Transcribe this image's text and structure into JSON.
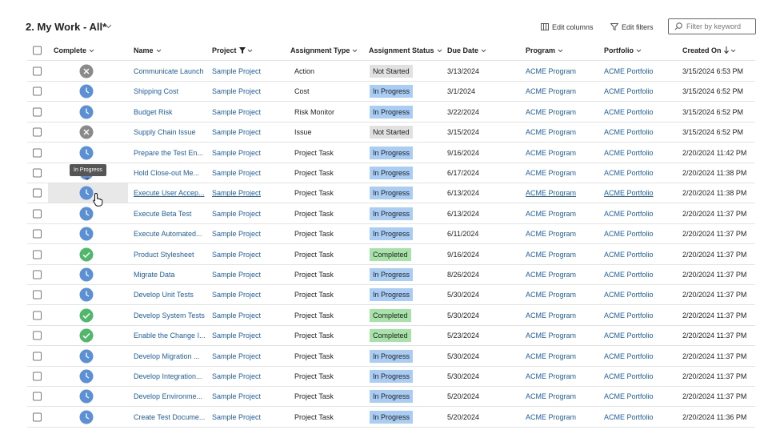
{
  "header": {
    "title": "2. My Work - All*",
    "edit_columns": "Edit columns",
    "edit_filters": "Edit filters",
    "search_placeholder": "Filter by keyword"
  },
  "table": {
    "columns": [
      "Complete",
      "Name",
      "Project",
      "Assignment Type",
      "Assignment Status",
      "Due Date",
      "Program",
      "Portfolio",
      "Created On"
    ],
    "rows": [
      [
        "Communicate Launch",
        "Sample Project",
        "Action",
        "Not Started",
        "3/13/2024",
        "ACME Program",
        "ACME Portfolio",
        "3/15/2024 6:53 PM"
      ],
      [
        "Shipping Cost",
        "Sample Project",
        "Cost",
        "In Progress",
        "3/1/2024",
        "ACME Program",
        "ACME Portfolio",
        "3/15/2024 6:52 PM"
      ],
      [
        "Budget Risk",
        "Sample Project",
        "Risk Monitor",
        "In Progress",
        "3/22/2024",
        "ACME Program",
        "ACME Portfolio",
        "3/15/2024 6:52 PM"
      ],
      [
        "Supply Chain Issue",
        "Sample Project",
        "Issue",
        "Not Started",
        "3/15/2024",
        "ACME Program",
        "ACME Portfolio",
        "3/15/2024 6:52 PM"
      ],
      [
        "Prepare the Test En...",
        "Sample Project",
        "Project Task",
        "In Progress",
        "9/16/2024",
        "ACME Program",
        "ACME Portfolio",
        "2/20/2024 11:42 PM"
      ],
      [
        "Hold Close-out Me...",
        "Sample Project",
        "Project Task",
        "In Progress",
        "6/17/2024",
        "ACME Program",
        "ACME Portfolio",
        "2/20/2024 11:38 PM"
      ],
      [
        "Execute User Accep...",
        "Sample Project",
        "Project Task",
        "In Progress",
        "6/13/2024",
        "ACME Program",
        "ACME Portfolio",
        "2/20/2024 11:38 PM"
      ],
      [
        "Execute Beta Test",
        "Sample Project",
        "Project Task",
        "In Progress",
        "6/13/2024",
        "ACME Program",
        "ACME Portfolio",
        "2/20/2024 11:37 PM"
      ],
      [
        "Execute Automated...",
        "Sample Project",
        "Project Task",
        "In Progress",
        "6/11/2024",
        "ACME Program",
        "ACME Portfolio",
        "2/20/2024 11:37 PM"
      ],
      [
        "Product Stylesheet",
        "Sample Project",
        "Project Task",
        "Completed",
        "9/16/2024",
        "ACME Program",
        "ACME Portfolio",
        "2/20/2024 11:37 PM"
      ],
      [
        "Migrate Data",
        "Sample Project",
        "Project Task",
        "In Progress",
        "8/26/2024",
        "ACME Program",
        "ACME Portfolio",
        "2/20/2024 11:37 PM"
      ],
      [
        "Develop Unit Tests",
        "Sample Project",
        "Project Task",
        "In Progress",
        "5/30/2024",
        "ACME Program",
        "ACME Portfolio",
        "2/20/2024 11:37 PM"
      ],
      [
        "Develop System Tests",
        "Sample Project",
        "Project Task",
        "Completed",
        "5/30/2024",
        "ACME Program",
        "ACME Portfolio",
        "2/20/2024 11:37 PM"
      ],
      [
        "Enable the Change I...",
        "Sample Project",
        "Project Task",
        "Completed",
        "5/23/2024",
        "ACME Program",
        "ACME Portfolio",
        "2/20/2024 11:37 PM"
      ],
      [
        "Develop Migration ...",
        "Sample Project",
        "Project Task",
        "In Progress",
        "5/30/2024",
        "ACME Program",
        "ACME Portfolio",
        "2/20/2024 11:37 PM"
      ],
      [
        "Develop Integration...",
        "Sample Project",
        "Project Task",
        "In Progress",
        "5/30/2024",
        "ACME Program",
        "ACME Portfolio",
        "2/20/2024 11:37 PM"
      ],
      [
        "Develop Environme...",
        "Sample Project",
        "Project Task",
        "In Progress",
        "5/20/2024",
        "ACME Program",
        "ACME Portfolio",
        "2/20/2024 11:37 PM"
      ],
      [
        "Create Test Docume...",
        "Sample Project",
        "Project Task",
        "In Progress",
        "5/20/2024",
        "ACME Program",
        "ACME Portfolio",
        "2/20/2024 11:36 PM"
      ]
    ]
  },
  "tooltip": "In Progress"
}
